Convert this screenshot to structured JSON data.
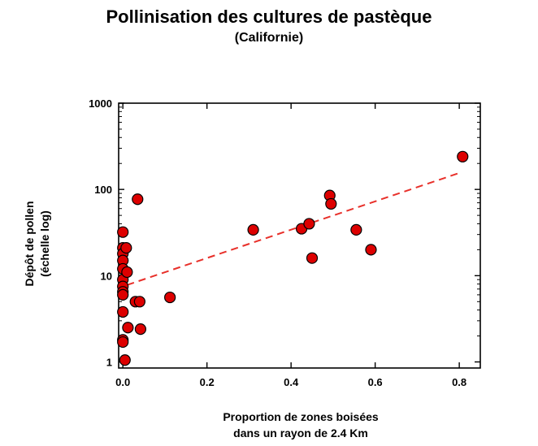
{
  "chart_data": {
    "type": "scatter",
    "title": "Pollinisation des cultures de pastèque",
    "subtitle": "(Californie)",
    "xlabel_lines": [
      "Proportion de zones boisées",
      "dans un rayon de 2.4 Km"
    ],
    "ylabel_lines": [
      "Dépôt de pollen",
      "(échelle log)"
    ],
    "xlim": [
      -0.01,
      0.85
    ],
    "ylim": [
      0.85,
      1000
    ],
    "y_scale": "log",
    "x_ticks": [
      0.0,
      0.2,
      0.4,
      0.6,
      0.8
    ],
    "x_tick_labels": [
      "0.0",
      "0.2",
      "0.4",
      "0.6",
      "0.8"
    ],
    "y_ticks": [
      1,
      10,
      100,
      1000
    ],
    "y_tick_labels": [
      "1",
      "10",
      "100",
      "1000"
    ],
    "marker_color": "#dd0000",
    "trend_color": "#e8302a",
    "series": [
      {
        "points": [
          {
            "x": 0.0,
            "y": 32
          },
          {
            "x": 0.0,
            "y": 21
          },
          {
            "x": 0.0,
            "y": 18
          },
          {
            "x": 0.0,
            "y": 15
          },
          {
            "x": 0.0,
            "y": 12
          },
          {
            "x": 0.0,
            "y": 9
          },
          {
            "x": 0.0,
            "y": 7.5
          },
          {
            "x": 0.0,
            "y": 6.5
          },
          {
            "x": 0.0,
            "y": 6
          },
          {
            "x": 0.0,
            "y": 3.8
          },
          {
            "x": 0.0,
            "y": 1.8
          },
          {
            "x": 0.0,
            "y": 1.7
          },
          {
            "x": 0.005,
            "y": 1.05
          },
          {
            "x": 0.008,
            "y": 21
          },
          {
            "x": 0.01,
            "y": 11
          },
          {
            "x": 0.012,
            "y": 2.5
          },
          {
            "x": 0.03,
            "y": 5
          },
          {
            "x": 0.035,
            "y": 77
          },
          {
            "x": 0.04,
            "y": 5
          },
          {
            "x": 0.042,
            "y": 2.4
          },
          {
            "x": 0.112,
            "y": 5.6
          },
          {
            "x": 0.31,
            "y": 34
          },
          {
            "x": 0.425,
            "y": 35
          },
          {
            "x": 0.443,
            "y": 40
          },
          {
            "x": 0.45,
            "y": 16
          },
          {
            "x": 0.492,
            "y": 85
          },
          {
            "x": 0.495,
            "y": 68
          },
          {
            "x": 0.555,
            "y": 34
          },
          {
            "x": 0.59,
            "y": 20
          },
          {
            "x": 0.808,
            "y": 240
          }
        ]
      }
    ],
    "trendline": {
      "x0": 0.01,
      "y0": 7.8,
      "x1": 0.8,
      "y1": 155,
      "style": "dashed"
    }
  }
}
